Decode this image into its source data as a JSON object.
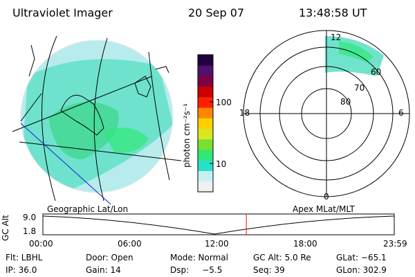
{
  "header": {
    "title": "Ultraviolet Imager",
    "date": "20 Sep 07",
    "time": "13:48:58 UT"
  },
  "colorbar": {
    "unit_label": "photon cm⁻²s⁻¹",
    "ticks": [
      "100",
      "10"
    ],
    "colors": [
      "#f0f0f0",
      "#c8f0f0",
      "#28e0c8",
      "#30e878",
      "#78e030",
      "#d8e820",
      "#ffd000",
      "#ff8800",
      "#ff2000",
      "#cc0000",
      "#800040",
      "#501070",
      "#200040"
    ]
  },
  "polar_plot": {
    "mlt_labels": {
      "top": "12",
      "left": "18",
      "right": "6",
      "bottom": "0"
    },
    "lat_labels": [
      "60",
      "70",
      "80"
    ]
  },
  "timeline": {
    "left_caption": "Geographic Lat/Lon",
    "right_caption": "Apex MLat/MLT",
    "axis_label": "GC Alt",
    "y_ticks": [
      "9.0",
      "1.8"
    ],
    "x_ticks": [
      "00:00",
      "06:00",
      "12:00",
      "18:00",
      "23:59"
    ],
    "current_time_fraction": 0.579,
    "marker_color": "#ff0000"
  },
  "info": {
    "row1": [
      "Flt: LBHL",
      "Door: Open",
      "Mode: Normal",
      "GC Alt: 5.0 Re",
      "GLat: −65.1"
    ],
    "row2": [
      "IP: 36.0",
      "Gain: 14",
      "Dsp:     −5.5",
      "Seq: 39",
      "GLon: 302.9"
    ]
  }
}
